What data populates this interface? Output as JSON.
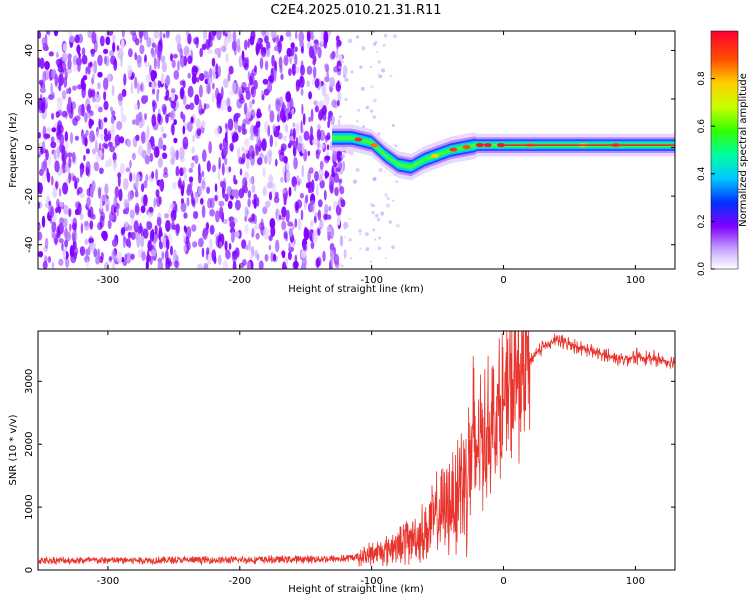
{
  "title": "C2E4.2025.010.21.31.R11",
  "colors": {
    "snr_line": "#e8342c",
    "axis": "#000000",
    "speckle": "#7f00ff"
  },
  "chart_data": [
    {
      "type": "heatmap",
      "name": "spectrogram",
      "xlabel": "Height of straight line (km)",
      "ylabel": "Frequency (Hz)",
      "xlim": [
        -353,
        130
      ],
      "ylim": [
        -50,
        48
      ],
      "x_ticks": [
        -300,
        -200,
        -100,
        0,
        100
      ],
      "y_ticks": [
        -40,
        -20,
        0,
        20,
        40
      ],
      "noise_region_x": [
        -353,
        -120
      ],
      "signal_ridge": [
        {
          "x": -130,
          "y": 4
        },
        {
          "x": -115,
          "y": 4
        },
        {
          "x": -100,
          "y": 2
        },
        {
          "x": -90,
          "y": -3
        },
        {
          "x": -80,
          "y": -7
        },
        {
          "x": -70,
          "y": -8
        },
        {
          "x": -60,
          "y": -5
        },
        {
          "x": -50,
          "y": -3
        },
        {
          "x": -40,
          "y": -1
        },
        {
          "x": -30,
          "y": 0
        },
        {
          "x": -20,
          "y": 1
        },
        {
          "x": -10,
          "y": 1
        },
        {
          "x": 0,
          "y": 1
        },
        {
          "x": 50,
          "y": 1
        },
        {
          "x": 100,
          "y": 1
        },
        {
          "x": 130,
          "y": 1
        }
      ],
      "colorbar": {
        "label": "Normalized spectral amplitude",
        "range": [
          0,
          1
        ],
        "ticks": [
          0.0,
          0.2,
          0.4,
          0.6,
          0.8
        ],
        "tick_labels": [
          "0.0",
          "0.2",
          "0.4",
          "0.6",
          "0.8"
        ]
      }
    },
    {
      "type": "line",
      "name": "snr",
      "xlabel": "Height of straight line (km)",
      "ylabel": "SNR (10 * v/v)",
      "xlim": [
        -353,
        130
      ],
      "ylim": [
        0,
        3800
      ],
      "x_ticks": [
        -300,
        -200,
        -100,
        0,
        100
      ],
      "y_ticks": [
        0,
        1000,
        2000,
        3000
      ],
      "trend": [
        {
          "x": -353,
          "y": 150
        },
        {
          "x": -200,
          "y": 160
        },
        {
          "x": -120,
          "y": 180
        },
        {
          "x": -100,
          "y": 250
        },
        {
          "x": -80,
          "y": 400
        },
        {
          "x": -60,
          "y": 600
        },
        {
          "x": -40,
          "y": 1100
        },
        {
          "x": -30,
          "y": 1500
        },
        {
          "x": -20,
          "y": 2000
        },
        {
          "x": -10,
          "y": 2300
        },
        {
          "x": 0,
          "y": 2600
        },
        {
          "x": 10,
          "y": 3000
        },
        {
          "x": 20,
          "y": 3350
        },
        {
          "x": 30,
          "y": 3550
        },
        {
          "x": 40,
          "y": 3650
        },
        {
          "x": 50,
          "y": 3600
        },
        {
          "x": 70,
          "y": 3450
        },
        {
          "x": 90,
          "y": 3350
        },
        {
          "x": 100,
          "y": 3400
        },
        {
          "x": 130,
          "y": 3300
        }
      ]
    }
  ]
}
